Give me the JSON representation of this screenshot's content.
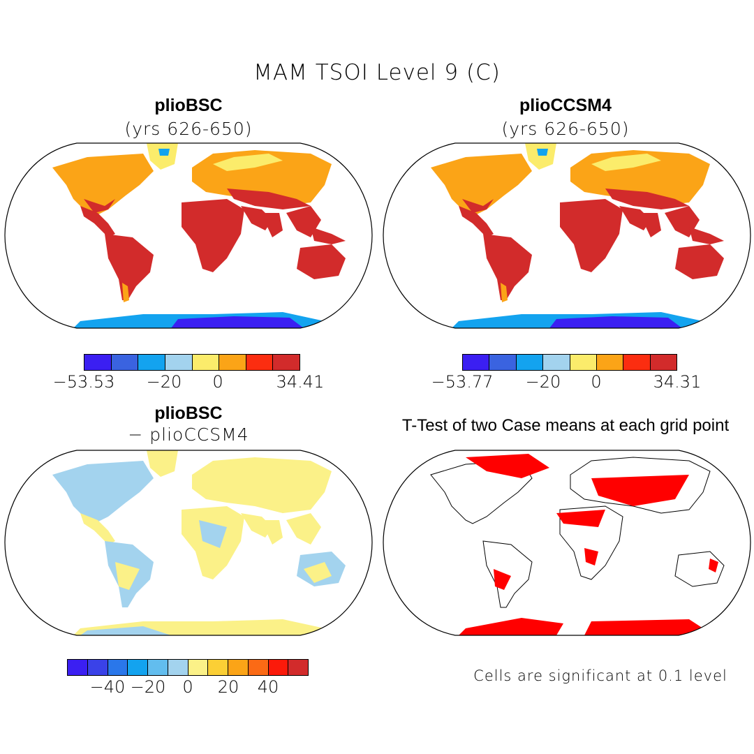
{
  "figure": {
    "title": "MAM TSOI Level 9 (C)"
  },
  "panels": {
    "top_left": {
      "title": "plioBSC",
      "subtitle": "(yrs 626-650)"
    },
    "top_right": {
      "title": "plioCCSM4",
      "subtitle": "(yrs 626-650)"
    },
    "bottom_left": {
      "title": "plioBSC",
      "subtitle": "- plioCCSM4"
    },
    "bottom_right": {
      "title": "T-Test of two Case means at each grid point",
      "footnote": "Cells are significant at 0.1 level"
    }
  },
  "colorbars": {
    "top_left": {
      "colors": [
        "#3b1ff2",
        "#3a63e0",
        "#13a3ef",
        "#a3d3ee",
        "#fbec6b",
        "#fba417",
        "#fb2d10",
        "#d22b2b"
      ],
      "ticks": [
        "-53.53",
        "-20",
        "0",
        "34.41"
      ]
    },
    "top_right": {
      "colors": [
        "#3b1ff2",
        "#3a63e0",
        "#13a3ef",
        "#a3d3ee",
        "#fbec6b",
        "#fba417",
        "#fb2d10",
        "#d22b2b"
      ],
      "ticks": [
        "-53.77",
        "-20",
        "0",
        "34.31"
      ]
    },
    "bottom_left": {
      "colors": [
        "#3b1ff2",
        "#3a42e8",
        "#2a77ea",
        "#13a3ef",
        "#62bdee",
        "#a3d3ee",
        "#fbf188",
        "#fbcf35",
        "#fba417",
        "#fb6a15",
        "#fb1a0a",
        "#d22b2b"
      ],
      "ticks": [
        "-40",
        "-20",
        "0",
        "20",
        "40"
      ]
    }
  },
  "map_colors": {
    "tropical": "#d22b2b",
    "temperate": "#fba417",
    "cold": "#fbec6b",
    "ice": "#13a3ef",
    "deep_ice": "#3b1ff2",
    "diff_pos": "#fbf188",
    "diff_neg": "#a3d3ee",
    "significant": "#ff0000"
  }
}
